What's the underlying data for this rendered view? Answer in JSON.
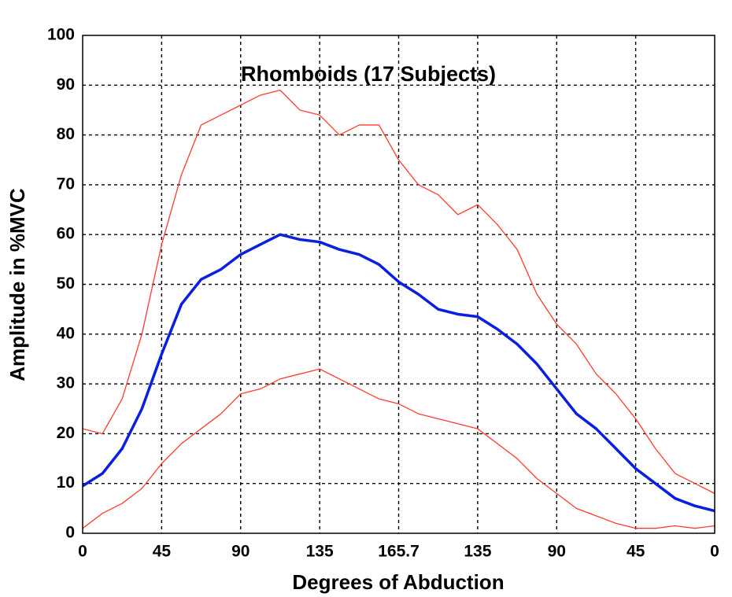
{
  "chart_data": {
    "type": "line",
    "title": "Rhomboids (17 Subjects)",
    "x_label": "Degrees of Abduction",
    "y_label": "Amplitude in %MVC",
    "x": [
      0,
      0.25,
      0.5,
      0.75,
      1,
      1.25,
      1.5,
      1.75,
      2,
      2.25,
      2.5,
      2.75,
      3,
      3.25,
      3.5,
      3.75,
      4,
      4.25,
      4.5,
      4.75,
      5,
      5.25,
      5.5,
      5.75,
      6,
      6.25,
      6.5,
      6.75,
      7,
      7.25,
      7.5,
      7.75,
      8
    ],
    "series": [
      {
        "color": "#ff3b30",
        "width": 1.3,
        "values": [
          21,
          20,
          27,
          40,
          58,
          72,
          82,
          84,
          86,
          88,
          89,
          85,
          84,
          80,
          82,
          82,
          75,
          70,
          68,
          64,
          66,
          62,
          57,
          48,
          42,
          38,
          32,
          28,
          23,
          17,
          12,
          10,
          8
        ]
      },
      {
        "color": "#0a1fe0",
        "width": 3.5,
        "values": [
          9.5,
          12,
          17,
          25,
          36,
          46,
          51,
          53,
          56,
          58,
          60,
          59,
          58.5,
          57,
          56,
          54,
          50.5,
          48,
          45,
          44,
          43.5,
          41,
          38,
          34,
          29,
          24,
          21,
          17,
          13,
          10,
          7,
          5.5,
          4.5
        ]
      },
      {
        "color": "#ff3b30",
        "width": 1.3,
        "values": [
          1,
          4,
          6,
          9,
          14,
          18,
          21,
          24,
          28,
          29,
          31,
          32,
          33,
          31,
          29,
          27,
          26,
          24,
          23,
          22,
          21,
          18,
          15,
          11,
          8,
          5,
          3.5,
          2,
          1,
          1,
          1.5,
          1,
          1.5
        ]
      }
    ],
    "xlim": [
      0,
      8
    ],
    "xticks": [
      {
        "value": 0,
        "label": "0"
      },
      {
        "value": 1,
        "label": "45"
      },
      {
        "value": 2,
        "label": "90"
      },
      {
        "value": 3,
        "label": "135"
      },
      {
        "value": 4,
        "label": "165.7"
      },
      {
        "value": 5,
        "label": "135"
      },
      {
        "value": 6,
        "label": "90"
      },
      {
        "value": 7,
        "label": "45"
      },
      {
        "value": 8,
        "label": "0"
      }
    ],
    "ylim": [
      0,
      100
    ],
    "yticks": [
      0,
      10,
      20,
      30,
      40,
      50,
      60,
      70,
      80,
      90,
      100
    ],
    "grid": true
  }
}
